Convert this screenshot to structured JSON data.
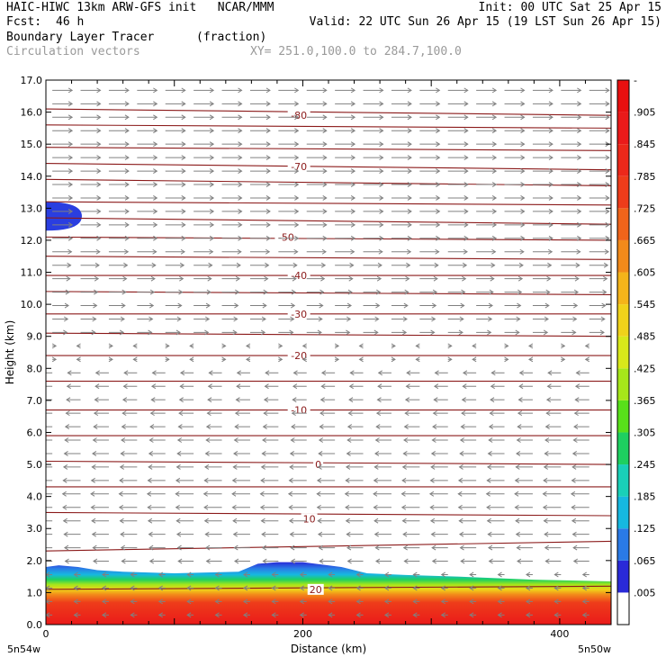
{
  "header": {
    "line1_left": "HAIC-HIWC 13km ARW-GFS init   NCAR/MMM",
    "line1_right": "Init: 00 UTC Sat 25 Apr 15",
    "fcst_label": "Fcst:",
    "fcst_value": "46 h",
    "valid": "Valid: 22 UTC Sun 26 Apr 15 (19 LST Sun 26 Apr 15)",
    "field": "Boundary Layer Tracer",
    "field_units": "(fraction)",
    "vectors": "Circulation vectors",
    "xy": "XY= 251.0,100.0 to 284.7,100.0"
  },
  "chart_data": {
    "type": "heatmap",
    "xlabel": "Distance (km)",
    "ylabel": "Height (km)",
    "xlim": [
      0,
      440
    ],
    "ylim": [
      0,
      17
    ],
    "x_ticks": [
      0,
      200,
      400
    ],
    "x_tick_labels": [
      "0",
      "200",
      "400"
    ],
    "x_end_labels": {
      "left": "5n54w",
      "right": "5n50w"
    },
    "y_ticks": [
      0,
      1,
      2,
      3,
      4,
      5,
      6,
      7,
      8,
      9,
      10,
      11,
      12,
      13,
      14,
      15,
      16,
      17
    ],
    "y_tick_labels": [
      "0.0",
      "1.0",
      "2.0",
      "3.0",
      "4.0",
      "5.0",
      "6.0",
      "7.0",
      "8.0",
      "9.0",
      "10.0",
      "11.0",
      "12.0",
      "13.0",
      "14.0",
      "15.0",
      "16.0",
      "17.0"
    ],
    "colorbar": {
      "labels": [
        ".005",
        ".065",
        ".125",
        ".185",
        ".245",
        ".305",
        ".365",
        ".425",
        ".485",
        ".545",
        ".605",
        ".665",
        ".725",
        ".785",
        ".845",
        ".905",
        "-"
      ],
      "colors": [
        "#ffffff",
        "#2a2ad8",
        "#2a7ae6",
        "#16b8e0",
        "#19d0b8",
        "#1ed060",
        "#58e01a",
        "#a6e61a",
        "#d8e81a",
        "#f0d21a",
        "#f4b41a",
        "#f28a1a",
        "#f0641a",
        "#ee3c1a",
        "#ec281a",
        "#ea1a1a",
        "#e81010"
      ]
    },
    "contour_series": {
      "name": "temperature",
      "color": "#8b1a1a",
      "labels": [
        {
          "value": "-80",
          "x": 197,
          "y": 15.9
        },
        {
          "value": "-70",
          "x": 197,
          "y": 14.3
        },
        {
          "value": "-50",
          "x": 187,
          "y": 12.1
        },
        {
          "value": "-40",
          "x": 197,
          "y": 10.9
        },
        {
          "value": "-30",
          "x": 197,
          "y": 9.7
        },
        {
          "value": "-20",
          "x": 197,
          "y": 8.4
        },
        {
          "value": "-10",
          "x": 197,
          "y": 6.7
        },
        {
          "value": "0",
          "x": 212,
          "y": 5.0
        },
        {
          "value": "10",
          "x": 205,
          "y": 3.3
        },
        {
          "value": "20",
          "x": 210,
          "y": 1.1
        }
      ],
      "levels": [
        {
          "y0": 16.1,
          "y1": 15.9
        },
        {
          "y0": 15.6,
          "y1": 15.5
        },
        {
          "y0": 14.9,
          "y1": 14.8
        },
        {
          "y0": 14.4,
          "y1": 14.2
        },
        {
          "y0": 13.9,
          "y1": 13.7
        },
        {
          "y0": 13.2,
          "y1": 13.1
        },
        {
          "y0": 12.7,
          "y1": 12.5
        },
        {
          "y0": 12.1,
          "y1": 12.0
        },
        {
          "y0": 11.5,
          "y1": 11.4
        },
        {
          "y0": 10.9,
          "y1": 10.9
        },
        {
          "y0": 10.4,
          "y1": 10.3
        },
        {
          "y0": 9.7,
          "y1": 9.7
        },
        {
          "y0": 9.1,
          "y1": 9.0
        },
        {
          "y0": 8.4,
          "y1": 8.4
        },
        {
          "y0": 7.6,
          "y1": 7.6
        },
        {
          "y0": 6.7,
          "y1": 6.7
        },
        {
          "y0": 5.9,
          "y1": 5.9
        },
        {
          "y0": 5.1,
          "y1": 5.0
        },
        {
          "y0": 4.3,
          "y1": 4.3
        },
        {
          "y0": 3.5,
          "y1": 3.4
        },
        {
          "y0": 2.3,
          "y1": 2.6
        },
        {
          "y0": 1.1,
          "y1": 1.2
        }
      ]
    },
    "pbl_top_profile": {
      "x": [
        0,
        10,
        25,
        40,
        60,
        100,
        150,
        165,
        180,
        200,
        230,
        250,
        280,
        320,
        350,
        380,
        440
      ],
      "top_km": [
        1.8,
        1.85,
        1.8,
        1.7,
        1.65,
        1.6,
        1.65,
        1.9,
        1.95,
        1.95,
        1.8,
        1.6,
        1.55,
        1.5,
        1.45,
        1.4,
        1.35
      ]
    },
    "upper_blob": {
      "x_max": 28,
      "y_min": 12.3,
      "y_max": 13.2
    },
    "vectors": {
      "upper_wind": "eastward",
      "lower_wind": "westward",
      "transition_km": 8.5
    }
  }
}
